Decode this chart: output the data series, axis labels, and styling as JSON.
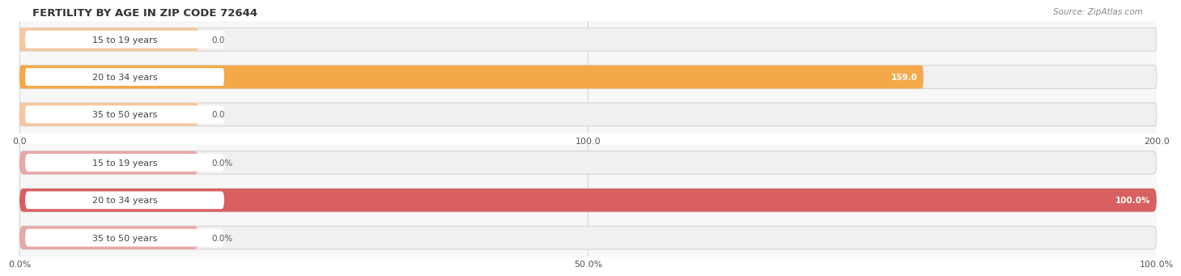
{
  "title": "FERTILITY BY AGE IN ZIP CODE 72644",
  "source": "Source: ZipAtlas.com",
  "top_chart": {
    "categories": [
      "15 to 19 years",
      "20 to 34 years",
      "35 to 50 years"
    ],
    "values": [
      0.0,
      159.0,
      0.0
    ],
    "xlim": [
      0,
      200
    ],
    "xticks": [
      0.0,
      100.0,
      200.0
    ],
    "xtick_labels": [
      "0.0",
      "100.0",
      "200.0"
    ],
    "bar_color": "#F5A84A",
    "bar_bg_color": "#F2EFEF",
    "stub_color": "#F5C8A0",
    "value_labels": [
      "0.0",
      "159.0",
      "0.0"
    ]
  },
  "bottom_chart": {
    "categories": [
      "15 to 19 years",
      "20 to 34 years",
      "35 to 50 years"
    ],
    "values": [
      0.0,
      100.0,
      0.0
    ],
    "xlim": [
      0,
      100
    ],
    "xticks": [
      0.0,
      50.0,
      100.0
    ],
    "xtick_labels": [
      "0.0%",
      "50.0%",
      "100.0%"
    ],
    "bar_color": "#D96060",
    "bar_bg_color": "#F2EFEF",
    "stub_color": "#E8A8A8",
    "value_labels": [
      "0.0%",
      "100.0%",
      "0.0%"
    ]
  },
  "label_color": "#444444",
  "value_color_inside": "#FFFFFF",
  "value_color_outside": "#555555",
  "fig_bg": "#FFFFFF",
  "axes_bg": "#F7F7F7",
  "grid_color": "#CCCCCC"
}
